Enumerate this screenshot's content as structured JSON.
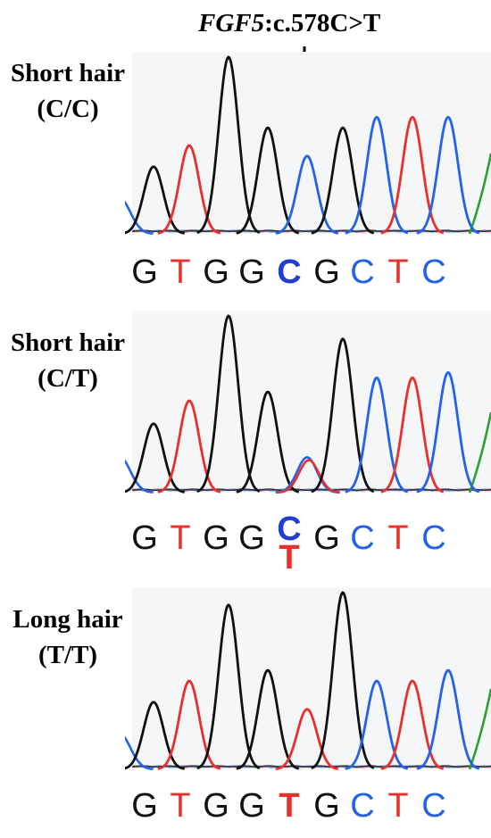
{
  "header": {
    "gene": "FGF5",
    "variant": ":c.578C>T"
  },
  "colors": {
    "G": "#111111",
    "T": "#e8302c",
    "C": "#2563e6",
    "A": "#2ca02c",
    "C_bold": "#1f3fd1"
  },
  "panels": [
    {
      "phenotype": "Short hair",
      "genotype": "(C/C)",
      "sequence": [
        "G",
        "T",
        "G",
        "G",
        "C",
        "G",
        "C",
        "T",
        "C"
      ],
      "mutant_position": 5,
      "mutant_display": [
        "C"
      ],
      "peaks": [
        {
          "base": "G",
          "height": 0.38
        },
        {
          "base": "T",
          "height": 0.5
        },
        {
          "base": "G",
          "height": 1.0
        },
        {
          "base": "G",
          "height": 0.6
        },
        {
          "base": "C",
          "height": 0.44
        },
        {
          "base": "G",
          "height": 0.6
        },
        {
          "base": "C",
          "height": 0.66
        },
        {
          "base": "T",
          "height": 0.66
        },
        {
          "base": "C",
          "height": 0.66
        }
      ]
    },
    {
      "phenotype": "Short hair",
      "genotype": "(C/T)",
      "sequence": [
        "G",
        "T",
        "G",
        "G",
        "C",
        "G",
        "C",
        "T",
        "C"
      ],
      "mutant_position": 5,
      "mutant_display": [
        "C",
        "T"
      ],
      "peaks": [
        {
          "base": "G",
          "height": 0.39
        },
        {
          "base": "T",
          "height": 0.52
        },
        {
          "base": "G",
          "height": 1.0
        },
        {
          "base": "G",
          "height": 0.57
        },
        {
          "base": "CT",
          "height": 0.2
        },
        {
          "base": "G",
          "height": 0.87
        },
        {
          "base": "C",
          "height": 0.65
        },
        {
          "base": "T",
          "height": 0.65
        },
        {
          "base": "C",
          "height": 0.68
        }
      ]
    },
    {
      "phenotype": "Long hair",
      "genotype": "(T/T)",
      "sequence": [
        "G",
        "T",
        "G",
        "G",
        "T",
        "G",
        "C",
        "T",
        "C"
      ],
      "mutant_position": 5,
      "mutant_display": [
        "T"
      ],
      "peaks": [
        {
          "base": "G",
          "height": 0.38
        },
        {
          "base": "T",
          "height": 0.5
        },
        {
          "base": "G",
          "height": 0.93
        },
        {
          "base": "G",
          "height": 0.56
        },
        {
          "base": "T",
          "height": 0.34
        },
        {
          "base": "G",
          "height": 1.0
        },
        {
          "base": "C",
          "height": 0.5
        },
        {
          "base": "T",
          "height": 0.5
        },
        {
          "base": "C",
          "height": 0.56
        }
      ]
    }
  ]
}
